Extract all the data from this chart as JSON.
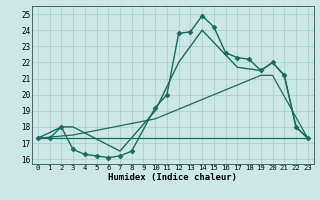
{
  "xlabel": "Humidex (Indice chaleur)",
  "xlim": [
    -0.5,
    23.5
  ],
  "ylim": [
    15.7,
    25.5
  ],
  "yticks": [
    16,
    17,
    18,
    19,
    20,
    21,
    22,
    23,
    24,
    25
  ],
  "xticks": [
    0,
    1,
    2,
    3,
    4,
    5,
    6,
    7,
    8,
    9,
    10,
    11,
    12,
    13,
    14,
    15,
    16,
    17,
    18,
    19,
    20,
    21,
    22,
    23
  ],
  "bg_color": "#cce8e6",
  "grid_color": "#a8ccca",
  "line_color": "#1a6b5a",
  "lines": [
    {
      "x": [
        0,
        1,
        2,
        3,
        4,
        5,
        6,
        7,
        8,
        10,
        11,
        12,
        13,
        14,
        15,
        16,
        17,
        18,
        19,
        20,
        21,
        22,
        23
      ],
      "y": [
        17.3,
        17.3,
        18.0,
        16.6,
        16.3,
        16.2,
        16.1,
        16.2,
        16.5,
        19.2,
        20.0,
        23.8,
        23.9,
        24.9,
        24.2,
        22.6,
        22.3,
        22.2,
        21.5,
        22.0,
        21.2,
        18.0,
        17.3
      ],
      "marker": "D",
      "markersize": 2.5,
      "linewidth": 1.0,
      "zorder": 4
    },
    {
      "x": [
        0,
        2,
        3,
        7,
        10,
        12,
        14,
        17,
        19,
        20,
        21,
        22,
        23
      ],
      "y": [
        17.3,
        18.0,
        18.0,
        16.5,
        19.0,
        22.0,
        24.0,
        21.7,
        21.5,
        22.0,
        21.2,
        18.0,
        17.3
      ],
      "marker": null,
      "markersize": 0,
      "linewidth": 1.0,
      "zorder": 3
    },
    {
      "x": [
        0,
        23
      ],
      "y": [
        17.3,
        17.3
      ],
      "marker": null,
      "markersize": 0,
      "linewidth": 0.9,
      "zorder": 2
    },
    {
      "x": [
        0,
        3,
        10,
        15,
        19,
        20,
        23
      ],
      "y": [
        17.3,
        17.5,
        18.5,
        20.0,
        21.2,
        21.2,
        17.3
      ],
      "marker": null,
      "markersize": 0,
      "linewidth": 0.9,
      "zorder": 2
    }
  ]
}
